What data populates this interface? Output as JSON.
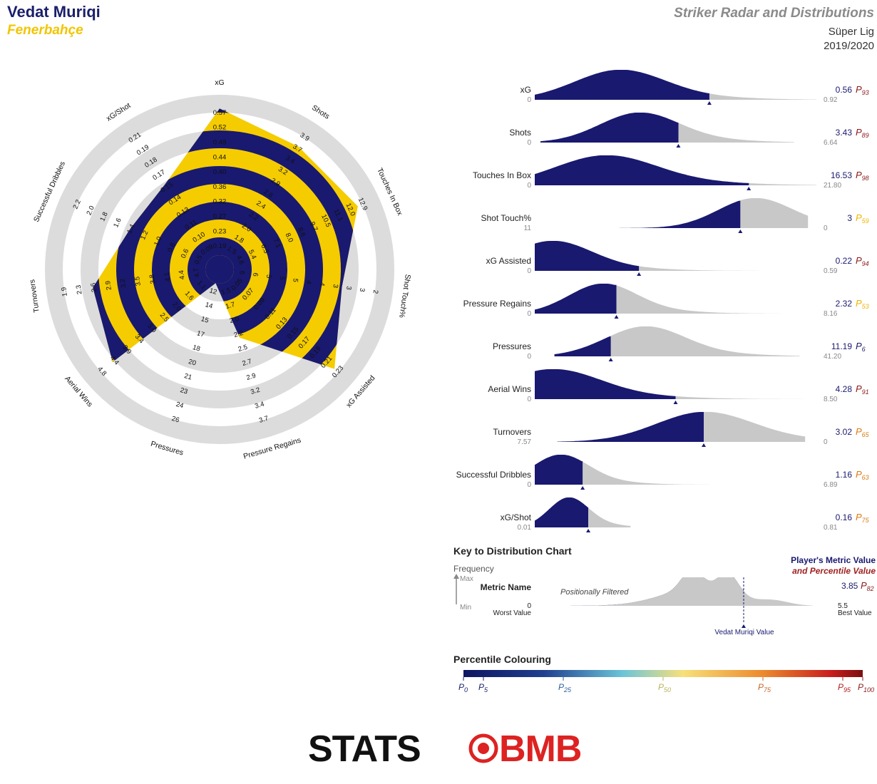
{
  "header": {
    "player": "Vedat Muriqi",
    "team": "Fenerbahçe",
    "title": "Striker Radar and Distributions",
    "league": "Süper Lig",
    "season": "2019/2020"
  },
  "colors": {
    "navy": "#191970",
    "gold": "#f5cc00",
    "ring_grey": "#dcdcdc",
    "dist_grey": "#c8c8c8",
    "percentile_dark_red": "#8b1a1a",
    "percentile_gold": "#f0b400",
    "percentile_orange": "#d97b16"
  },
  "chart_data": [
    {
      "type": "radar",
      "axes": [
        {
          "name": "xG",
          "ticks": [
            "0.19",
            "0.23",
            "0.27",
            "0.32",
            "0.36",
            "0.40",
            "0.44",
            "0.48",
            "0.52",
            "0.57"
          ],
          "value": 0.56
        },
        {
          "name": "Shots",
          "ticks": [
            "1.5",
            "1.8",
            "2.0",
            "2.2",
            "2.4",
            "2.6",
            "2.9",
            "3.2",
            "3.4",
            "3.7",
            "3.9"
          ],
          "value": 3.43
        },
        {
          "name": "Touches In Box",
          "ticks": [
            "4.6",
            "5.4",
            "6.3",
            "7.1",
            "8.0",
            "8.8",
            "9.7",
            "10.5",
            "11.1",
            "12.0",
            "12.9"
          ],
          "value": 16.53
        },
        {
          "name": "Shot Touch%",
          "ticks": [
            "6",
            "6",
            "5",
            "5",
            "5",
            "4",
            "4",
            "3",
            "3",
            "3",
            "2"
          ],
          "value": 3
        },
        {
          "name": "xG Assisted",
          "ticks": [
            "0.05",
            "0.07",
            "0.09",
            "0.11",
            "0.13",
            "0.15",
            "0.17",
            "0.19",
            "0.21",
            "0.23"
          ],
          "value": 0.22
        },
        {
          "name": "Pressure Regains",
          "ticks": [
            "1.5",
            "1.7",
            "2.0",
            "2.2",
            "2.5",
            "2.7",
            "2.9",
            "3.2",
            "3.4",
            "3.7"
          ],
          "value": 2.32
        },
        {
          "name": "Pressures",
          "ticks": [
            "12",
            "14",
            "15",
            "17",
            "18",
            "20",
            "21",
            "23",
            "24",
            "26"
          ],
          "value": 11.19
        },
        {
          "name": "Aerial Wins",
          "ticks": [
            "1.1",
            "1.6",
            "2.0",
            "2.5",
            "3.0",
            "3.4",
            "3.9",
            "4.4",
            "4.8"
          ],
          "value": 4.28
        },
        {
          "name": "Turnovers",
          "ticks": [
            "4.7",
            "4.4",
            "4.1",
            "3.8",
            "3.5",
            "3.2",
            "2.9",
            "2.6",
            "2.3",
            "1.9"
          ],
          "value": 3.02
        },
        {
          "name": "Successful Dribbles",
          "ticks": [
            "0.5",
            "0.6",
            "0.8",
            "1.0",
            "1.2",
            "1.4",
            "1.6",
            "1.8",
            "2.0",
            "2.2"
          ],
          "value": 1.16
        },
        {
          "name": "xG/Shot",
          "ticks": [
            "0.09",
            "0.10",
            "0.11",
            "0.13",
            "0.14",
            "0.15",
            "0.17",
            "0.18",
            "0.19",
            "0.21"
          ],
          "value": 0.16
        }
      ],
      "fraction_of_radius": [
        0.98,
        0.88,
        0.92,
        0.73,
        0.92,
        0.38,
        0.0,
        0.85,
        0.76,
        0.56,
        0.58
      ]
    },
    {
      "type": "area",
      "rows": [
        {
          "metric": "xG",
          "min": "0",
          "max": "0.92",
          "value": "0.56",
          "percentile": "93",
          "pcolor": "#8b1a1a",
          "marker": 0.62,
          "peak": 0.3,
          "spread": 0.16,
          "x0": 0.0,
          "x1": 1.0
        },
        {
          "metric": "Shots",
          "min": "0",
          "max": "6.64",
          "value": "3.43",
          "percentile": "89",
          "pcolor": "#8b1a1a",
          "marker": 0.51,
          "peak": 0.37,
          "spread": 0.14,
          "x0": 0.02,
          "x1": 0.92
        },
        {
          "metric": "Touches In Box",
          "min": "0",
          "max": "21.80",
          "value": "16.53",
          "percentile": "98",
          "pcolor": "#8b1a1a",
          "marker": 0.76,
          "peak": 0.25,
          "spread": 0.18,
          "x0": 0.0,
          "x1": 1.0
        },
        {
          "metric": "Shot Touch%",
          "min": "11",
          "max": "0",
          "value": "3",
          "percentile": "59",
          "pcolor": "#f0b400",
          "marker": 0.73,
          "peak": 0.78,
          "spread": 0.13,
          "x0": 0.02,
          "x1": 0.97
        },
        {
          "metric": "xG Assisted",
          "min": "0",
          "max": "0.59",
          "value": "0.22",
          "percentile": "94",
          "pcolor": "#8b1a1a",
          "marker": 0.37,
          "peak": 0.06,
          "spread": 0.14,
          "x0": 0.0,
          "x1": 0.94
        },
        {
          "metric": "Pressure Regains",
          "min": "0",
          "max": "8.16",
          "value": "2.32",
          "percentile": "53",
          "pcolor": "#f0b400",
          "marker": 0.29,
          "peak": 0.24,
          "spread": 0.12,
          "x0": 0.0,
          "x1": 1.0
        },
        {
          "metric": "Pressures",
          "min": "0",
          "max": "41.20",
          "value": "11.19",
          "percentile": "6",
          "pcolor": "#1a1f6b",
          "marker": 0.27,
          "peak": 0.39,
          "spread": 0.14,
          "x0": 0.07,
          "x1": 0.94
        },
        {
          "metric": "Aerial Wins",
          "min": "0",
          "max": "8.50",
          "value": "4.28",
          "percentile": "91",
          "pcolor": "#8b1a1a",
          "marker": 0.5,
          "peak": 0.06,
          "spread": 0.17,
          "x0": 0.0,
          "x1": 1.0
        },
        {
          "metric": "Turnovers",
          "min": "7.57",
          "max": "0",
          "value": "3.02",
          "percentile": "65",
          "pcolor": "#d97b16",
          "marker": 0.6,
          "peak": 0.6,
          "spread": 0.17,
          "x0": 0.08,
          "x1": 0.96
        },
        {
          "metric": "Successful Dribbles",
          "min": "0",
          "max": "6.89",
          "value": "1.16",
          "percentile": "63",
          "pcolor": "#d97b16",
          "marker": 0.17,
          "peak": 0.09,
          "spread": 0.1,
          "x0": 0.0,
          "x1": 0.77
        },
        {
          "metric": "xG/Shot",
          "min": "0.01",
          "max": "0.81",
          "value": "0.16",
          "percentile": "75",
          "pcolor": "#d97b16",
          "marker": 0.19,
          "peak": 0.12,
          "spread": 0.07,
          "x0": 0.0,
          "x1": 0.34
        }
      ]
    }
  ],
  "key": {
    "title": "Key to Distribution Chart",
    "frequency": "Frequency",
    "max": "Max",
    "min": "Min",
    "metric_name": "Metric Name",
    "worst_num": "0",
    "worst_label": "Worst Value",
    "best_num": "5.5",
    "best_label": "Best Value",
    "filter_note": "Positionally Filtered",
    "player_value_label": "Player's Metric Value",
    "percentile_value_label": "and Percentile Value",
    "example_value": "3.85",
    "example_percentile": "82",
    "marker_label": "Vedat Muriqi Value"
  },
  "percentile_scale": {
    "title": "Percentile Colouring",
    "ticks": [
      {
        "p": "0",
        "color": "#1a1f6b",
        "pos": 0.0
      },
      {
        "p": "5",
        "color": "#1a1f6b",
        "pos": 0.05
      },
      {
        "p": "25",
        "color": "#2a5fa0",
        "pos": 0.25
      },
      {
        "p": "50",
        "color": "#b8b45a",
        "pos": 0.5
      },
      {
        "p": "75",
        "color": "#c8642a",
        "pos": 0.75
      },
      {
        "p": "95",
        "color": "#b01e1e",
        "pos": 0.95
      },
      {
        "p": "100",
        "color": "#8b1a1a",
        "pos": 1.0
      }
    ]
  },
  "logo": {
    "text_left": "STATS",
    "text_right": "BMB"
  }
}
